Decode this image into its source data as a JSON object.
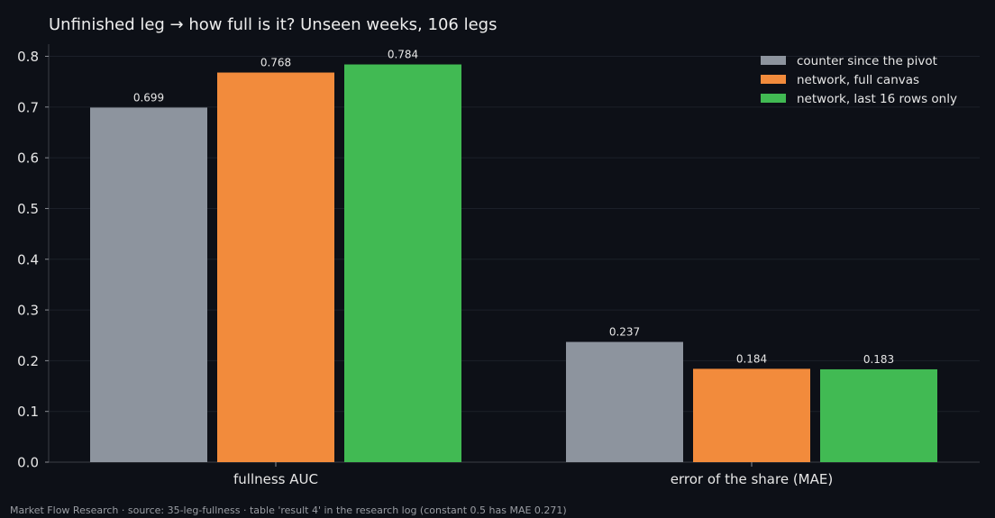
{
  "chart_data": {
    "type": "bar",
    "title": "Unfinished leg → how full is it? Unseen weeks, 106 legs",
    "xlabel": "",
    "ylabel": "",
    "categories": [
      "fullness AUC",
      "error of the share (MAE)"
    ],
    "series": [
      {
        "name": "counter since the pivot",
        "color": "#8d949e",
        "values": [
          0.699,
          0.237
        ]
      },
      {
        "name": "network, full canvas",
        "color": "#f28b3c",
        "values": [
          0.768,
          0.184
        ]
      },
      {
        "name": "network, last 16 rows only",
        "color": "#41ba53",
        "values": [
          0.784,
          0.183
        ]
      }
    ],
    "value_labels": [
      [
        "0.699",
        "0.237"
      ],
      [
        "0.768",
        "0.184"
      ],
      [
        "0.784",
        "0.183"
      ]
    ],
    "ylim": [
      0,
      0.824
    ],
    "yticks": [
      0.0,
      0.1,
      0.2,
      0.3,
      0.4,
      0.5,
      0.6,
      0.7,
      0.8
    ],
    "ytick_labels": [
      "0.0",
      "0.1",
      "0.2",
      "0.3",
      "0.4",
      "0.5",
      "0.6",
      "0.7",
      "0.8"
    ],
    "grid": true,
    "legend_position": "top-right"
  },
  "footer": "Market Flow Research · source: 35-leg-fullness · table 'result 4' in the research log (constant 0.5 has MAE 0.271)"
}
